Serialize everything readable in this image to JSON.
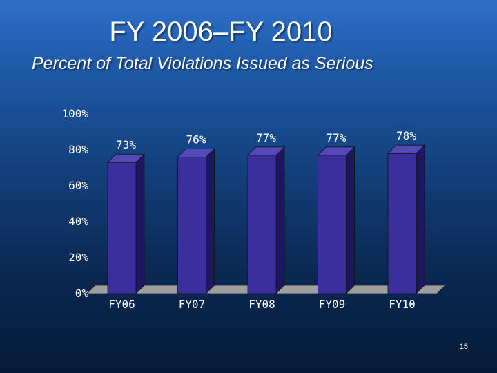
{
  "slide": {
    "title": "FY 2006–FY 2010",
    "subtitle": "Percent of Total Violations Issued as Serious",
    "page_number": "15"
  },
  "colors": {
    "bar_front": "#3b2f9e",
    "bar_side": "#1e1760",
    "bar_top": "#5548b8",
    "floor": "#9e9e9e",
    "text": "#ffffff"
  },
  "chart_data": {
    "type": "bar",
    "title": "",
    "xlabel": "",
    "ylabel": "",
    "categories": [
      "FY06",
      "FY07",
      "FY08",
      "FY09",
      "FY10"
    ],
    "values": [
      73,
      76,
      77,
      77,
      78
    ],
    "data_labels": [
      "73%",
      "76%",
      "77%",
      "77%",
      "78%"
    ],
    "ylim": [
      0,
      100
    ],
    "y_ticks": [
      {
        "value": 0,
        "label": "0%"
      },
      {
        "value": 20,
        "label": "20%"
      },
      {
        "value": 40,
        "label": "40%"
      },
      {
        "value": 60,
        "label": "60%"
      },
      {
        "value": 80,
        "label": "80%"
      },
      {
        "value": 100,
        "label": "100%"
      }
    ],
    "grid": false,
    "legend": "none",
    "style": "3d-column"
  }
}
